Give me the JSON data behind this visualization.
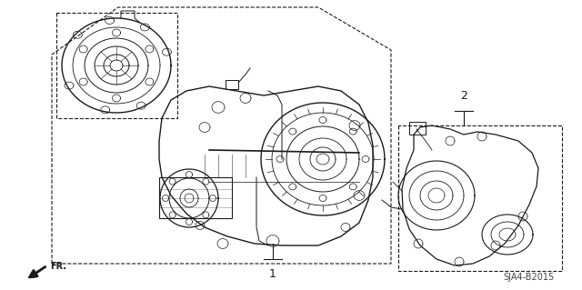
{
  "bg_color": "#ffffff",
  "line_color": "#1a1a1a",
  "fig_width": 6.4,
  "fig_height": 3.19,
  "dpi": 100,
  "diagram_code": "SJA4-B2015",
  "label1": "1",
  "label2": "2",
  "fr_label": "FR."
}
